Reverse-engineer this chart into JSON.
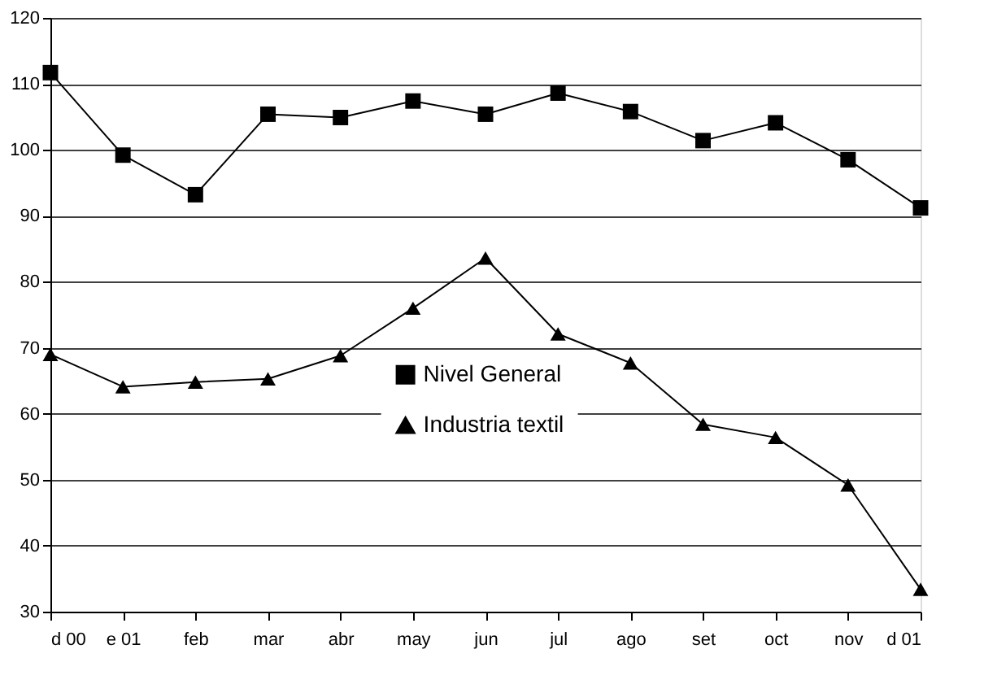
{
  "chart_data": {
    "type": "line",
    "categories": [
      "d 00",
      "e 01",
      "feb",
      "mar",
      "abr",
      "may",
      "jun",
      "jul",
      "ago",
      "set",
      "oct",
      "nov",
      "d 01"
    ],
    "series": [
      {
        "name": "Nivel General",
        "color": "#000000",
        "marker": "square",
        "values": [
          111.7,
          99.2,
          93.2,
          105.4,
          104.9,
          107.4,
          105.4,
          108.6,
          105.8,
          101.4,
          104.1,
          98.5,
          91.2
        ]
      },
      {
        "name": "Industria textil",
        "color": "#000000",
        "marker": "triangle",
        "values": [
          69,
          64.1,
          64.8,
          65.3,
          68.8,
          76,
          83.6,
          72.1,
          67.7,
          58.4,
          56.4,
          49.2,
          33.4
        ]
      }
    ],
    "ylim": [
      30,
      120
    ],
    "yticks": [
      30,
      40,
      50,
      60,
      70,
      80,
      90,
      100,
      110,
      120
    ],
    "grid": "y",
    "legend": "center",
    "line_style": "solid"
  }
}
